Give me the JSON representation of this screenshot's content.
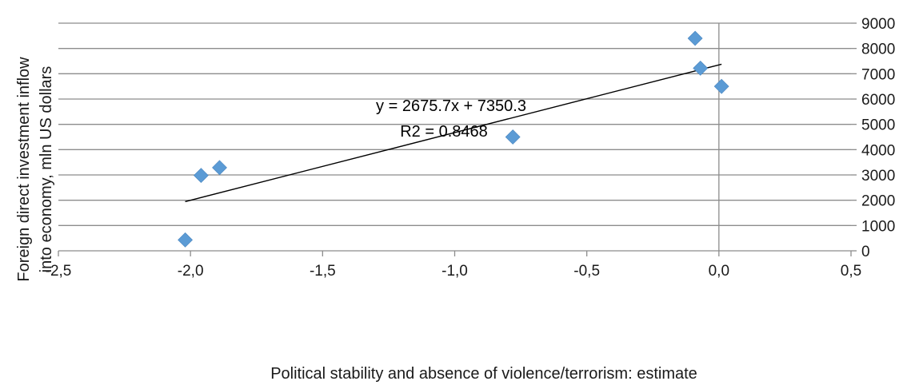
{
  "chart_data": {
    "type": "scatter",
    "title": "",
    "xlabel": "Political stability and absence of violence/terrorism: estimate",
    "ylabel_lines": [
      "Foreign direct investment inflow",
      "into economy, mln US dollars"
    ],
    "xlim": [
      -2.5,
      0.5
    ],
    "ylim": [
      0,
      9000
    ],
    "x_ticks": [
      -2.5,
      -2.0,
      -1.5,
      -1.0,
      -0.5,
      0.0,
      0.5
    ],
    "x_tick_labels": [
      "-2,5",
      "-2,0",
      "-1,5",
      "-1,0",
      "-0,5",
      "0,0",
      "0,5"
    ],
    "y_ticks": [
      0,
      1000,
      2000,
      3000,
      4000,
      5000,
      6000,
      7000,
      8000,
      9000
    ],
    "y_tick_labels": [
      "0",
      "1000",
      "2000",
      "3000",
      "4000",
      "5000",
      "6000",
      "7000",
      "8000",
      "9000"
    ],
    "grid": "horizontal",
    "y_axis_position": "right",
    "marker": "diamond",
    "marker_color": "#5b9bd5",
    "points": [
      {
        "x": -2.02,
        "y": 430
      },
      {
        "x": -1.96,
        "y": 2980
      },
      {
        "x": -1.89,
        "y": 3290
      },
      {
        "x": -0.78,
        "y": 4500
      },
      {
        "x": -0.09,
        "y": 8400
      },
      {
        "x": -0.07,
        "y": 7220
      },
      {
        "x": 0.01,
        "y": 6500
      }
    ],
    "trendline": {
      "slope": 2675.7,
      "intercept": 7350.3,
      "x_range": [
        -2.02,
        0.01
      ],
      "equation_label": "y = 2675.7x + 7350.3",
      "r2_label": "R2 = 0.8468"
    }
  }
}
